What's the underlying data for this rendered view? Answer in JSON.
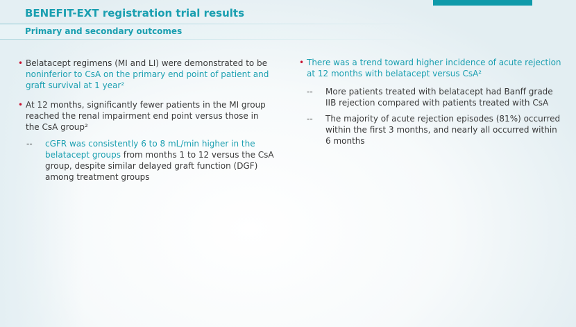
{
  "slide": {
    "title": "BENEFIT-EXT registration trial results",
    "subtitle": "Primary and secondary outcomes"
  },
  "left_column": {
    "bullet1": {
      "text_a": "Belatacept regimens (MI and LI) were demonstrated to be ",
      "text_b": "noninferior to CsA on the primary end point of patient and graft survival at 1 year²"
    },
    "bullet2": {
      "text": "At 12 months, significantly fewer patients in the MI group reached the renal impairment end point versus those in the CsA group²"
    },
    "sub1": {
      "dash": "--",
      "text_a": "cGFR was consistently 6 to 8 mL/min higher in the belatacept groups",
      "text_b": " from months 1 to 12 versus the CsA group, despite similar delayed graft function (DGF) among treatment groups"
    }
  },
  "right_column": {
    "bullet1": {
      "text": "There was a trend toward higher incidence of acute rejection at 12 months with belatacept versus CsA²"
    },
    "sub1": {
      "dash": "--",
      "text": "More patients treated with belatacept had Banff grade IIB rejection compared with patients treated with CsA"
    },
    "sub2": {
      "dash": "--",
      "text": "The majority of acute rejection episodes (81%) occurred within the first 3 months, and nearly all occurred within 6 months"
    }
  },
  "colors": {
    "accent": "#1a9fb0",
    "bar": "#0f9aaa",
    "bullet": "#c8102e",
    "text": "#3a3a3a"
  }
}
